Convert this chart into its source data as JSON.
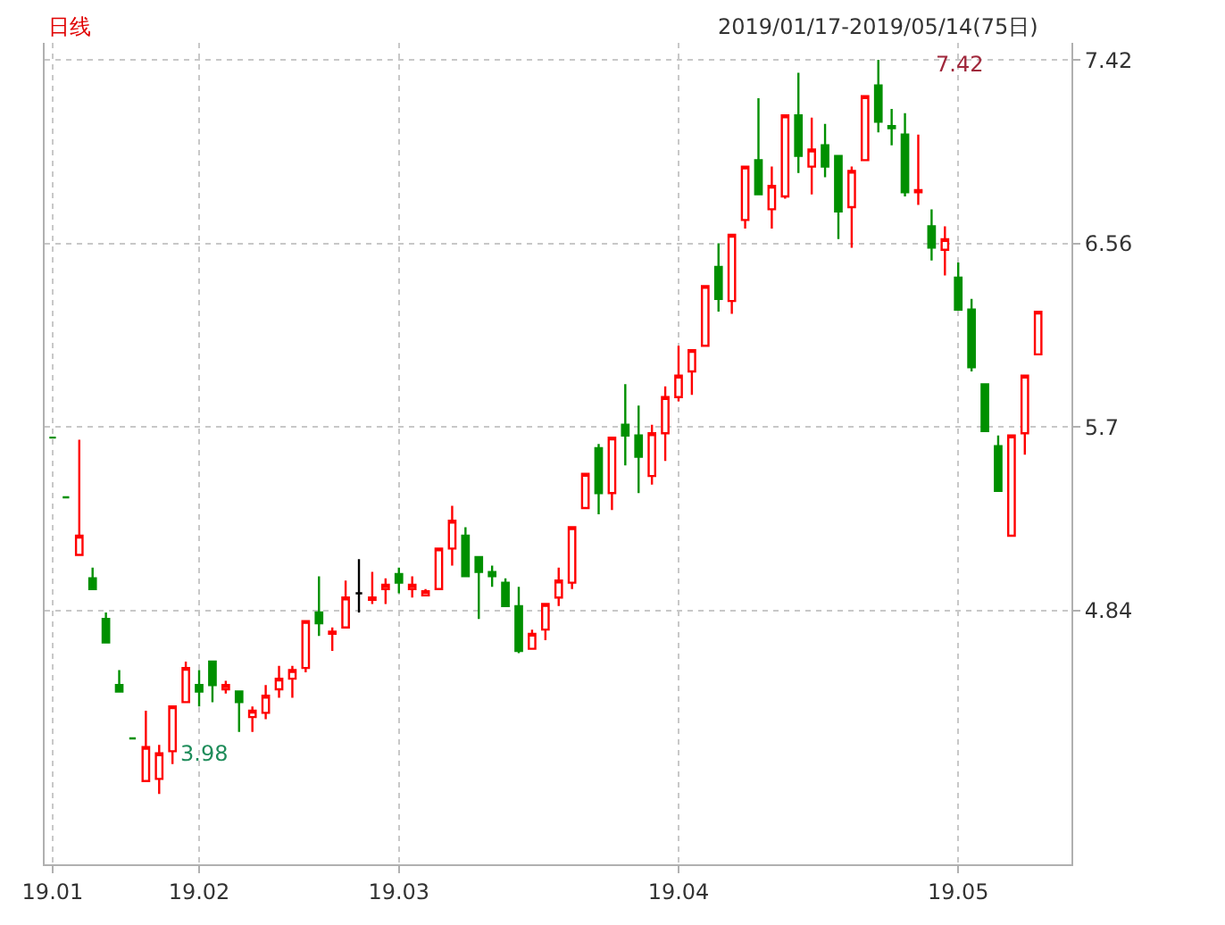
{
  "chart_data": {
    "type": "candlestick",
    "title": "日线",
    "subtitle": "2019/01/17-2019/05/14(75日)",
    "categories": [
      "19.01",
      null,
      null,
      null,
      null,
      null,
      null,
      null,
      null,
      null,
      null,
      "19.02",
      null,
      null,
      null,
      null,
      null,
      null,
      null,
      null,
      null,
      null,
      null,
      null,
      null,
      null,
      "19.03",
      null,
      null,
      null,
      null,
      null,
      null,
      null,
      null,
      null,
      null,
      null,
      null,
      null,
      null,
      null,
      null,
      null,
      null,
      null,
      null,
      "19.04",
      null,
      null,
      null,
      null,
      null,
      null,
      null,
      null,
      null,
      null,
      null,
      null,
      null,
      null,
      null,
      null,
      null,
      null,
      null,
      null,
      "19.05",
      null,
      null,
      null,
      null,
      null,
      null
    ],
    "ohlc": [
      [
        5.65,
        5.65,
        5.65,
        5.65
      ],
      [
        5.37,
        5.37,
        5.37,
        5.37
      ],
      [
        5.1,
        5.64,
        5.1,
        5.19
      ],
      [
        4.99,
        5.04,
        4.94,
        4.94
      ],
      [
        4.8,
        4.83,
        4.69,
        4.69
      ],
      [
        4.49,
        4.56,
        4.46,
        4.46
      ],
      [
        4.24,
        4.24,
        4.24,
        4.24
      ],
      [
        4.04,
        4.37,
        4.04,
        4.2
      ],
      [
        4.05,
        4.21,
        3.98,
        4.17
      ],
      [
        4.18,
        4.39,
        4.12,
        4.39
      ],
      [
        4.41,
        4.6,
        4.41,
        4.57
      ],
      [
        4.49,
        4.56,
        4.39,
        4.46
      ],
      [
        4.6,
        4.6,
        4.41,
        4.49
      ],
      [
        4.47,
        4.51,
        4.45,
        4.49
      ],
      [
        4.46,
        4.46,
        4.27,
        4.41
      ],
      [
        4.34,
        4.39,
        4.27,
        4.37
      ],
      [
        4.36,
        4.49,
        4.33,
        4.44
      ],
      [
        4.47,
        4.58,
        4.43,
        4.52
      ],
      [
        4.52,
        4.58,
        4.43,
        4.56
      ],
      [
        4.57,
        4.79,
        4.55,
        4.79
      ],
      [
        4.83,
        5.0,
        4.72,
        4.78
      ],
      [
        4.73,
        4.76,
        4.65,
        4.74
      ],
      [
        4.76,
        4.98,
        4.76,
        4.9
      ],
      [
        4.92,
        5.08,
        4.83,
        4.92
      ],
      [
        4.89,
        5.02,
        4.87,
        4.9
      ],
      [
        4.94,
        4.99,
        4.87,
        4.96
      ],
      [
        5.01,
        5.04,
        4.92,
        4.97
      ],
      [
        4.94,
        5.0,
        4.9,
        4.96
      ],
      [
        4.91,
        4.94,
        4.91,
        4.93
      ],
      [
        4.94,
        5.13,
        4.94,
        5.13
      ],
      [
        5.13,
        5.33,
        5.05,
        5.26
      ],
      [
        5.19,
        5.23,
        5.0,
        5.0
      ],
      [
        5.09,
        5.09,
        4.8,
        5.02
      ],
      [
        5.02,
        5.05,
        4.95,
        5.0
      ],
      [
        4.97,
        4.99,
        4.86,
        4.86
      ],
      [
        4.86,
        4.95,
        4.64,
        4.65
      ],
      [
        4.66,
        4.75,
        4.66,
        4.73
      ],
      [
        4.75,
        4.87,
        4.7,
        4.87
      ],
      [
        4.9,
        5.04,
        4.86,
        4.98
      ],
      [
        4.97,
        5.23,
        4.94,
        5.23
      ],
      [
        5.32,
        5.48,
        5.32,
        5.48
      ],
      [
        5.6,
        5.62,
        5.29,
        5.39
      ],
      [
        5.39,
        5.65,
        5.31,
        5.65
      ],
      [
        5.71,
        5.9,
        5.52,
        5.66
      ],
      [
        5.66,
        5.8,
        5.39,
        5.56
      ],
      [
        5.47,
        5.71,
        5.43,
        5.67
      ],
      [
        5.67,
        5.89,
        5.54,
        5.84
      ],
      [
        5.84,
        6.08,
        5.82,
        5.94
      ],
      [
        5.96,
        6.06,
        5.85,
        6.06
      ],
      [
        6.08,
        6.36,
        6.08,
        6.36
      ],
      [
        6.45,
        6.56,
        6.24,
        6.3
      ],
      [
        6.29,
        6.6,
        6.23,
        6.6
      ],
      [
        6.67,
        6.92,
        6.63,
        6.92
      ],
      [
        6.95,
        7.24,
        6.79,
        6.79
      ],
      [
        6.72,
        6.92,
        6.63,
        6.83
      ],
      [
        6.78,
        7.16,
        6.77,
        7.16
      ],
      [
        7.16,
        7.36,
        6.89,
        6.97
      ],
      [
        6.92,
        7.15,
        6.79,
        7.0
      ],
      [
        7.02,
        7.12,
        6.87,
        6.92
      ],
      [
        6.97,
        6.97,
        6.58,
        6.71
      ],
      [
        6.73,
        6.92,
        6.54,
        6.9
      ],
      [
        6.95,
        7.25,
        6.95,
        7.25
      ],
      [
        7.3,
        7.42,
        7.08,
        7.13
      ],
      [
        7.11,
        7.19,
        7.02,
        7.1
      ],
      [
        7.07,
        7.17,
        6.78,
        6.8
      ],
      [
        6.8,
        7.07,
        6.74,
        6.81
      ],
      [
        6.64,
        6.72,
        6.48,
        6.54
      ],
      [
        6.53,
        6.64,
        6.41,
        6.58
      ],
      [
        6.4,
        6.47,
        6.25,
        6.25
      ],
      [
        6.25,
        6.3,
        5.96,
        5.98
      ],
      [
        5.9,
        5.9,
        5.68,
        5.68
      ],
      [
        5.61,
        5.66,
        5.4,
        5.4
      ],
      [
        5.19,
        5.66,
        5.19,
        5.66
      ],
      [
        5.67,
        5.94,
        5.57,
        5.94
      ],
      [
        6.04,
        6.24,
        6.04,
        6.24
      ]
    ],
    "colors": [
      "#009000",
      "#009000",
      "#ff0000",
      "#009000",
      "#009000",
      "#009000",
      "#009000",
      "#ff0000",
      "#ff0000",
      "#ff0000",
      "#ff0000",
      "#009000",
      "#009000",
      "#ff0000",
      "#009000",
      "#ff0000",
      "#ff0000",
      "#ff0000",
      "#ff0000",
      "#ff0000",
      "#009000",
      "#ff0000",
      "#ff0000",
      "#000000",
      "#ff0000",
      "#ff0000",
      "#009000",
      "#ff0000",
      "#ff0000",
      "#ff0000",
      "#ff0000",
      "#009000",
      "#009000",
      "#009000",
      "#009000",
      "#009000",
      "#ff0000",
      "#ff0000",
      "#ff0000",
      "#ff0000",
      "#ff0000",
      "#009000",
      "#ff0000",
      "#009000",
      "#009000",
      "#ff0000",
      "#ff0000",
      "#ff0000",
      "#ff0000",
      "#ff0000",
      "#009000",
      "#ff0000",
      "#ff0000",
      "#009000",
      "#ff0000",
      "#ff0000",
      "#009000",
      "#ff0000",
      "#009000",
      "#009000",
      "#ff0000",
      "#ff0000",
      "#009000",
      "#009000",
      "#009000",
      "#ff0000",
      "#009000",
      "#ff0000",
      "#009000",
      "#009000",
      "#009000",
      "#009000",
      "#ff0000",
      "#ff0000",
      "#ff0000"
    ],
    "ylim": [
      3.65,
      7.5
    ],
    "yticks": [
      4.84,
      5.7,
      6.56,
      7.42
    ],
    "grid": true,
    "annotations": [
      "7.42",
      "3.98"
    ]
  }
}
